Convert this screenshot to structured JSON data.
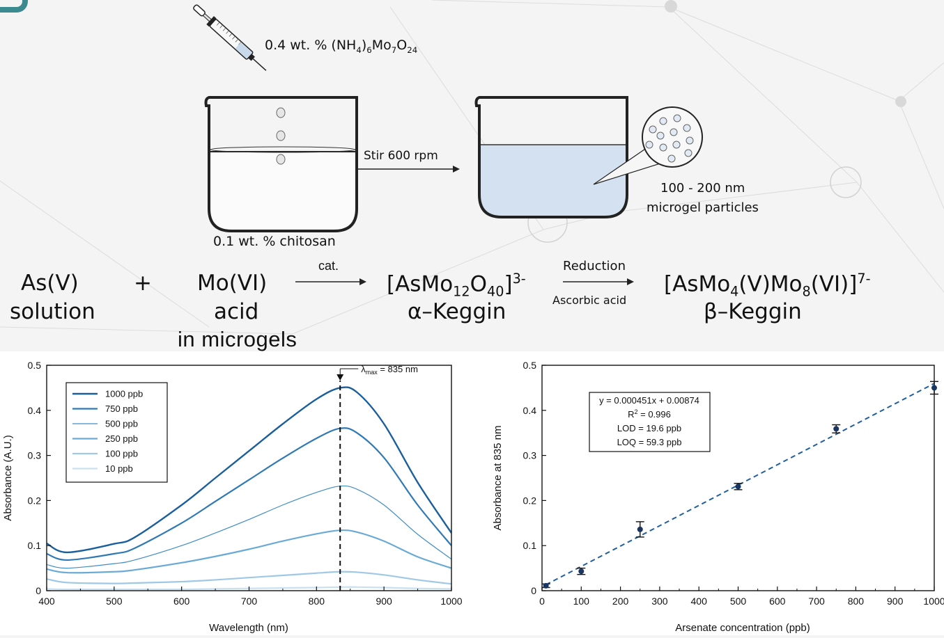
{
  "scheme": {
    "reagent_label": "0.4 wt. % (NH",
    "reagent_sub1": "4",
    "reagent_mid": ")",
    "reagent_sub2": "6",
    "reagent_mo": "Mo",
    "reagent_sub3": "7",
    "reagent_o": "O",
    "reagent_sub4": "24",
    "stir_label": "Stir 600 rpm",
    "chitosan_label": "0.1 wt. % chitosan",
    "particle_size": "100 - 200 nm",
    "particle_label": "microgel particles"
  },
  "reaction": {
    "reactant1_line1": "As(V)",
    "reactant1_line2": "solution",
    "plus": "+",
    "reactant2_line1": "Mo(VI)",
    "reactant2_line2": "acid",
    "reactant2_line3": "in microgels",
    "arrow1_label": "cat.",
    "product1_a": "[AsMo",
    "product1_sub1": "12",
    "product1_b": "O",
    "product1_sub2": "40",
    "product1_c": "]",
    "product1_sup": "3-",
    "product1_name": "α–Keggin",
    "arrow2_top": "Reduction",
    "arrow2_bottom": "Ascorbic acid",
    "product2_a": "[AsMo",
    "product2_sub1": "4",
    "product2_b": "(V)Mo",
    "product2_sub2": "8",
    "product2_c": "(VI)]",
    "product2_sup": "7-",
    "product2_name": "β–Keggin"
  },
  "chart_data": [
    {
      "type": "line",
      "xlabel": "Wavelength (nm)",
      "ylabel": "Absorbance (A.U.)",
      "xlim": [
        400,
        1000
      ],
      "ylim": [
        0,
        0.5
      ],
      "xticks": [
        400,
        500,
        600,
        700,
        800,
        900,
        1000
      ],
      "yticks": [
        0,
        0.1,
        0.2,
        0.3,
        0.4,
        0.5
      ],
      "ytick_labels": [
        "0",
        "0.1",
        "0.2",
        "0.3",
        "0.4",
        "0.5"
      ],
      "legend_position": "top-left",
      "annotation": {
        "prefix": "λ",
        "subscript": "max",
        "suffix": " = 835 nm",
        "x": 835
      },
      "x": [
        400,
        430,
        500,
        530,
        600,
        650,
        700,
        750,
        800,
        835,
        860,
        900,
        950,
        1000
      ],
      "series": [
        {
          "name": "1000 ppb",
          "color": "#1a5f9c",
          "width": 2.4,
          "values": [
            0.105,
            0.085,
            0.104,
            0.118,
            0.19,
            0.25,
            0.31,
            0.37,
            0.425,
            0.45,
            0.44,
            0.37,
            0.24,
            0.128
          ]
        },
        {
          "name": "750 ppb",
          "color": "#2f79b5",
          "width": 2.2,
          "values": [
            0.082,
            0.068,
            0.082,
            0.094,
            0.15,
            0.198,
            0.246,
            0.294,
            0.338,
            0.36,
            0.35,
            0.295,
            0.19,
            0.1
          ]
        },
        {
          "name": "500 ppb",
          "color": "#3f8cc6",
          "width": 1.2,
          "values": [
            0.058,
            0.05,
            0.06,
            0.068,
            0.1,
            0.128,
            0.158,
            0.19,
            0.218,
            0.232,
            0.225,
            0.19,
            0.125,
            0.07
          ]
        },
        {
          "name": "250 ppb",
          "color": "#6aaad6",
          "width": 2.2,
          "values": [
            0.048,
            0.04,
            0.042,
            0.046,
            0.062,
            0.076,
            0.092,
            0.11,
            0.126,
            0.134,
            0.13,
            0.11,
            0.075,
            0.05
          ]
        },
        {
          "name": "100 ppb",
          "color": "#9fc8e6",
          "width": 2.2,
          "values": [
            0.026,
            0.018,
            0.016,
            0.017,
            0.02,
            0.024,
            0.029,
            0.034,
            0.039,
            0.042,
            0.041,
            0.035,
            0.024,
            0.015
          ]
        },
        {
          "name": "10 ppb",
          "color": "#c9e0f2",
          "width": 2.2,
          "values": [
            0.004,
            0.003,
            0.003,
            0.003,
            0.003,
            0.004,
            0.005,
            0.006,
            0.007,
            0.008,
            0.008,
            0.007,
            0.005,
            0.004
          ]
        }
      ]
    },
    {
      "type": "scatter",
      "xlabel": "Arsenate concentration (ppb)",
      "ylabel": "Absorbance at 835 nm",
      "xlim": [
        0,
        1000
      ],
      "ylim": [
        0,
        0.5
      ],
      "xticks": [
        0,
        100,
        200,
        300,
        400,
        500,
        600,
        700,
        800,
        900,
        1000
      ],
      "yticks": [
        0,
        0.1,
        0.2,
        0.3,
        0.4,
        0.5
      ],
      "ytick_labels": [
        "0",
        "0.1",
        "0.2",
        "0.3",
        "0.4",
        "0.5"
      ],
      "points": [
        {
          "x": 10,
          "y": 0.011,
          "err": 0.004
        },
        {
          "x": 100,
          "y": 0.043,
          "err": 0.007
        },
        {
          "x": 250,
          "y": 0.136,
          "err": 0.017
        },
        {
          "x": 500,
          "y": 0.231,
          "err": 0.007
        },
        {
          "x": 750,
          "y": 0.359,
          "err": 0.009
        },
        {
          "x": 1000,
          "y": 0.45,
          "err": 0.014
        }
      ],
      "fit": {
        "slope": 0.000451,
        "intercept": 0.00874,
        "x_range": [
          10,
          1000
        ]
      },
      "marker_color": "#1a3560",
      "fit_color": "#1f5f9f",
      "stats_box": {
        "equation": "y = 0.000451x + 0.00874",
        "r2_prefix": "R",
        "r2_sup": "2",
        "r2_suffix": " = 0.996",
        "lod": "LOD = 19.6 ppb",
        "loq": "LOQ = 59.3 ppb"
      }
    }
  ]
}
